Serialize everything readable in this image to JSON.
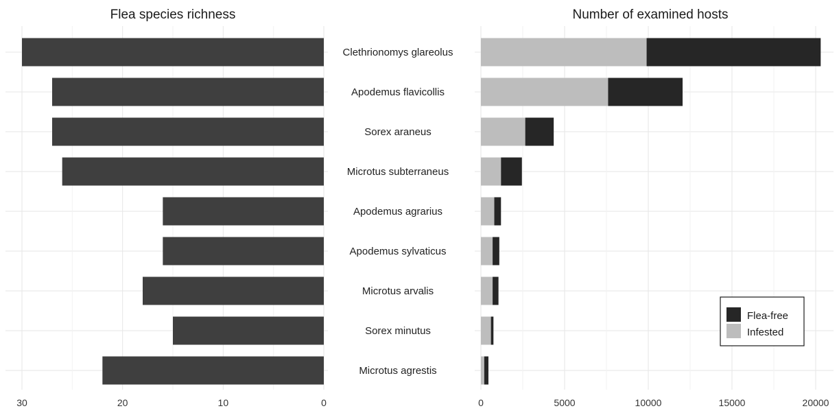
{
  "chart_data": [
    {
      "type": "bar",
      "orientation": "horizontal",
      "x_direction": "reversed",
      "title": "Flea species richness",
      "categories": [
        "Clethrionomys glareolus",
        "Apodemus flavicollis",
        "Sorex araneus",
        "Microtus subterraneus",
        "Apodemus agrarius",
        "Apodemus sylvaticus",
        "Microtus arvalis",
        "Sorex minutus",
        "Microtus agrestis"
      ],
      "values": [
        30,
        27,
        27,
        26,
        16,
        16,
        18,
        15,
        22
      ],
      "xlim": [
        0,
        30
      ],
      "xticks": [
        "30",
        "20",
        "10",
        "0"
      ],
      "bar_color": "#3f3f3f",
      "grid": true
    },
    {
      "type": "bar",
      "orientation": "horizontal",
      "stacked": true,
      "title": "Number of examined hosts",
      "categories": [
        "Clethrionomys glareolus",
        "Apodemus flavicollis",
        "Sorex araneus",
        "Microtus subterraneus",
        "Apodemus agrarius",
        "Apodemus sylvaticus",
        "Microtus arvalis",
        "Sorex minutus",
        "Microtus agrestis"
      ],
      "series": [
        {
          "name": "Infested",
          "color": "#bdbdbd",
          "values": [
            9900,
            7600,
            2650,
            1200,
            800,
            700,
            700,
            600,
            200
          ]
        },
        {
          "name": "Flea-free",
          "color": "#262626",
          "values": [
            10400,
            4450,
            1700,
            1250,
            400,
            400,
            350,
            150,
            250
          ]
        }
      ],
      "xlim": [
        0,
        20000
      ],
      "xticks": [
        "0",
        "5000",
        "10000",
        "15000",
        "20000"
      ],
      "legend": {
        "position": "bottom-right",
        "entries": [
          "Flea-free",
          "Infested"
        ]
      },
      "grid": true
    }
  ]
}
